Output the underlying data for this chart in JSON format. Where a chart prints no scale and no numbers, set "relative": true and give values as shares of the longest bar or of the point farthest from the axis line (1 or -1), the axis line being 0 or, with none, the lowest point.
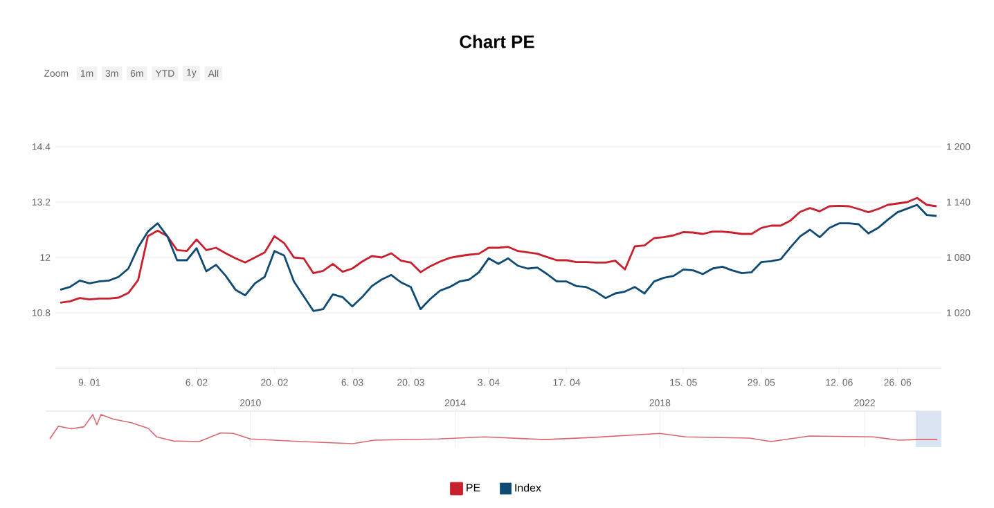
{
  "chart_data": [
    {
      "type": "line",
      "title": "Chart PE",
      "annotations": [
        "Zoom",
        "1m",
        "3m",
        "6m",
        "YTD",
        "1y",
        "All"
      ],
      "categories": [
        null,
        null,
        null,
        "9. 01",
        null,
        null,
        null,
        null,
        null,
        null,
        null,
        null,
        null,
        null,
        "6. 02",
        null,
        null,
        null,
        null,
        null,
        null,
        null,
        "20. 02",
        null,
        null,
        null,
        null,
        null,
        null,
        null,
        "6. 03",
        null,
        null,
        null,
        null,
        null,
        "20. 03",
        null,
        null,
        null,
        null,
        null,
        null,
        null,
        "3. 04",
        null,
        null,
        null,
        null,
        null,
        null,
        null,
        "17. 04",
        null,
        null,
        null,
        null,
        null,
        null,
        null,
        null,
        null,
        null,
        null,
        "15. 05",
        null,
        null,
        null,
        null,
        null,
        null,
        null,
        "29. 05",
        null,
        null,
        null,
        null,
        null,
        null,
        null,
        "12. 06",
        null,
        null,
        null,
        null,
        null,
        "26. 06",
        null,
        null,
        null,
        null
      ],
      "series": [
        {
          "name": "PE",
          "color": "#c8202f",
          "values": [
            11.02,
            11.05,
            11.12,
            11.09,
            11.11,
            11.11,
            11.13,
            11.23,
            11.51,
            12.46,
            12.58,
            12.46,
            12.16,
            12.14,
            12.39,
            12.16,
            12.21,
            12.09,
            11.98,
            11.89,
            12.0,
            12.11,
            12.46,
            12.31,
            12.0,
            11.98,
            11.66,
            11.71,
            11.86,
            11.69,
            11.76,
            11.91,
            12.03,
            12.0,
            12.09,
            11.93,
            11.89,
            11.68,
            11.81,
            11.91,
            11.99,
            12.03,
            12.06,
            12.08,
            12.21,
            12.21,
            12.23,
            12.14,
            12.11,
            12.08,
            12.01,
            11.94,
            11.94,
            11.9,
            11.9,
            11.89,
            11.89,
            11.93,
            11.74,
            12.24,
            12.26,
            12.42,
            12.44,
            12.48,
            12.55,
            12.54,
            12.51,
            12.56,
            12.56,
            12.54,
            12.51,
            12.51,
            12.64,
            12.69,
            12.69,
            12.8,
            12.99,
            13.07,
            13.0,
            13.11,
            13.12,
            13.11,
            13.05,
            12.98,
            13.05,
            13.14,
            13.17,
            13.2,
            13.29,
            13.14,
            13.11
          ]
        },
        {
          "name": "Index",
          "color": "#0d4a74",
          "axis": "y2",
          "values": [
            1045,
            1048,
            1055,
            1052,
            1054,
            1055,
            1059,
            1068,
            1091,
            1108,
            1117,
            1103,
            1077,
            1077,
            1090,
            1065,
            1072,
            1060,
            1045,
            1039,
            1052,
            1059,
            1087,
            1082,
            1054,
            1038,
            1022,
            1024,
            1040,
            1037,
            1027,
            1037,
            1049,
            1056,
            1061,
            1053,
            1048,
            1024,
            1035,
            1044,
            1048,
            1054,
            1056,
            1064,
            1079,
            1073,
            1079,
            1071,
            1068,
            1069,
            1062,
            1054,
            1054,
            1049,
            1048,
            1043,
            1036,
            1041,
            1043,
            1048,
            1041,
            1054,
            1058,
            1060,
            1067,
            1066,
            1062,
            1068,
            1070,
            1066,
            1063,
            1064,
            1075,
            1076,
            1078,
            1091,
            1103,
            1110,
            1102,
            1112,
            1117,
            1117,
            1116,
            1106,
            1112,
            1121,
            1129,
            1133,
            1137,
            1126,
            1125
          ]
        }
      ],
      "ylim": [
        9.6,
        14.4
      ],
      "yticks": [
        10.8,
        12,
        13.2,
        14.4
      ],
      "y2lim": [
        960,
        1200
      ],
      "y2ticks": [
        {
          "value": 1020,
          "label": "1 020"
        },
        {
          "value": 1080,
          "label": "1 080"
        },
        {
          "value": 1140,
          "label": "1 140"
        },
        {
          "value": 1200,
          "label": "1 200"
        }
      ],
      "grid": "y",
      "legend": "bottom"
    },
    {
      "type": "line",
      "relative": true,
      "x": [
        "2006-02",
        "2006-04",
        "2006-07",
        "2006-10",
        "2006-12",
        "2007-01",
        "2007-02",
        "2007-05",
        "2007-09",
        "2008-01",
        "2008-03",
        "2008-07",
        "2009-01",
        "2009-06",
        "2009-09",
        "2010-01",
        "2011-01",
        "2012-01",
        "2012-06",
        "2013-09",
        "2014-08",
        "2015-10",
        "2016-09",
        "2018-01",
        "2018-07",
        "2019-10",
        "2020-03",
        "2020-12",
        "2022-03",
        "2022-09",
        "2023-01",
        "2023-06"
      ],
      "series": [
        {
          "color": "#d9656f",
          "values": [
            0.16,
            0.6,
            0.51,
            0.58,
            1,
            0.65,
            1,
            0.84,
            0.72,
            0.53,
            0.23,
            0.09,
            0.07,
            0.37,
            0.35,
            0.16,
            0.07,
            0,
            0.12,
            0.16,
            0.23,
            0.14,
            0.21,
            0.35,
            0.23,
            0.19,
            0.07,
            0.26,
            0.23,
            0.12,
            0.14,
            0.14
          ]
        }
      ],
      "xlim": [
        "2006-01",
        "2023-07"
      ],
      "xticks": [
        {
          "value": "2010",
          "label": "2010"
        },
        {
          "value": "2014",
          "label": "2014"
        },
        {
          "value": "2018",
          "label": "2018"
        },
        {
          "value": "2022",
          "label": "2022"
        }
      ],
      "bands": [
        {
          "axis": "x",
          "from": "2023-01",
          "to": "2023-07",
          "color": "#dbe4f2"
        }
      ],
      "grid": "x"
    }
  ]
}
